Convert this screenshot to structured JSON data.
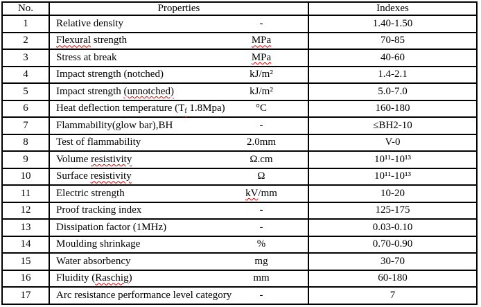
{
  "table": {
    "spellcheck_color": "#e00000",
    "headers": {
      "no": "No.",
      "properties": "Properties",
      "indexes": "Indexes"
    },
    "rows": [
      {
        "no": "1",
        "name": [
          {
            "t": "Relative density"
          }
        ],
        "unit": [
          {
            "t": "-"
          }
        ],
        "index": [
          {
            "t": "1.40-1.50"
          }
        ]
      },
      {
        "no": "2",
        "name": [
          {
            "t": "Flexural",
            "squiggle": true
          },
          {
            "t": " strength"
          }
        ],
        "unit": [
          {
            "t": "MPa",
            "squiggle": true
          }
        ],
        "index": [
          {
            "t": "70-85"
          }
        ]
      },
      {
        "no": "3",
        "name": [
          {
            "t": "Stress at break"
          }
        ],
        "unit": [
          {
            "t": "MPa",
            "squiggle": true
          }
        ],
        "index": [
          {
            "t": "40-60"
          }
        ]
      },
      {
        "no": "4",
        "name": [
          {
            "t": "Impact strength (notched)"
          }
        ],
        "unit": [
          {
            "t": "kJ/m²"
          }
        ],
        "index": [
          {
            "t": "1.4-2.1"
          }
        ]
      },
      {
        "no": "5",
        "name": [
          {
            "t": "Impact strength "
          },
          {
            "t": "(unnotched)",
            "squiggle": true
          }
        ],
        "unit": [
          {
            "t": "kJ/m²"
          }
        ],
        "index": [
          {
            "t": "5.0-7.0"
          }
        ]
      },
      {
        "no": "6",
        "name": [
          {
            "t": "Heat deflection temperature (T"
          },
          {
            "t": "f",
            "sub": true,
            "squiggle": true
          },
          {
            "t": " 1.8Mpa)"
          }
        ],
        "unit": [
          {
            "t": "°C"
          }
        ],
        "index": [
          {
            "t": "160-180"
          }
        ]
      },
      {
        "no": "7",
        "name": [
          {
            "t": "Flammability(glow bar),BH"
          }
        ],
        "unit": [
          {
            "t": "-"
          }
        ],
        "index": [
          {
            "t": "≤BH2-10"
          }
        ]
      },
      {
        "no": "8",
        "name": [
          {
            "t": "Test of flammability"
          }
        ],
        "unit": [
          {
            "t": "2.0mm"
          }
        ],
        "index": [
          {
            "t": "V-0"
          }
        ]
      },
      {
        "no": "9",
        "name": [
          {
            "t": "Volume "
          },
          {
            "t": "resistivity",
            "squiggle": true
          }
        ],
        "unit": [
          {
            "t": "Ω.cm"
          }
        ],
        "index": [
          {
            "t": "10¹¹-10¹³"
          }
        ]
      },
      {
        "no": "10",
        "name": [
          {
            "t": "Surface "
          },
          {
            "t": "resistivity",
            "squiggle": true
          }
        ],
        "unit": [
          {
            "t": "Ω"
          }
        ],
        "index": [
          {
            "t": "10¹¹-10¹³"
          }
        ]
      },
      {
        "no": "11",
        "name": [
          {
            "t": "Electric strength"
          }
        ],
        "unit": [
          {
            "t": "kV",
            "squiggle": true
          },
          {
            "t": "/mm"
          }
        ],
        "index": [
          {
            "t": "10-20"
          }
        ]
      },
      {
        "no": "12",
        "name": [
          {
            "t": "Proof tracking index"
          }
        ],
        "unit": [
          {
            "t": "-"
          }
        ],
        "index": [
          {
            "t": "125-175"
          }
        ]
      },
      {
        "no": "13",
        "name": [
          {
            "t": "Dissipation factor (1MHz)"
          }
        ],
        "unit": [
          {
            "t": "-"
          }
        ],
        "index": [
          {
            "t": "0.03-0.10"
          }
        ]
      },
      {
        "no": "14",
        "name": [
          {
            "t": "Moulding shrinkage"
          }
        ],
        "unit": [
          {
            "t": "%"
          }
        ],
        "index": [
          {
            "t": "0.70-0.90"
          }
        ]
      },
      {
        "no": "15",
        "name": [
          {
            "t": "Water absorbency"
          }
        ],
        "unit": [
          {
            "t": "mg"
          }
        ],
        "index": [
          {
            "t": "30-70"
          }
        ]
      },
      {
        "no": "16",
        "name": [
          {
            "t": "Fluidity ("
          },
          {
            "t": "Raschig",
            "squiggle": true
          },
          {
            "t": ")"
          }
        ],
        "unit": [
          {
            "t": "mm"
          }
        ],
        "index": [
          {
            "t": "60-180"
          }
        ]
      },
      {
        "no": "17",
        "name": [
          {
            "t": "Arc resistance performance level category"
          }
        ],
        "unit": [
          {
            "t": "-"
          }
        ],
        "index": [
          {
            "t": "7"
          }
        ]
      }
    ]
  }
}
